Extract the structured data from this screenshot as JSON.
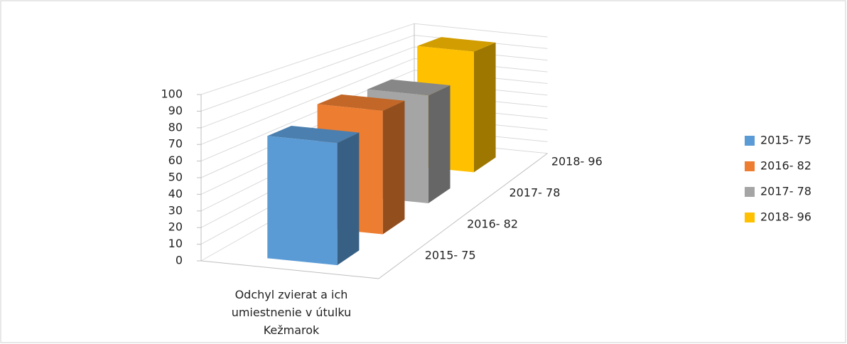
{
  "chart_data": {
    "type": "bar3d",
    "categories": [
      "Odchyl zvierat a ich umiestnenie v útulku Kežmarok"
    ],
    "series": [
      {
        "name": "2015- 75",
        "color": "#5b9bd5",
        "values": [
          75
        ]
      },
      {
        "name": "2016- 82",
        "color": "#ed7d31",
        "values": [
          82
        ]
      },
      {
        "name": "2017- 78",
        "color": "#a5a5a5",
        "values": [
          78
        ]
      },
      {
        "name": "2018- 96",
        "color": "#ffc000",
        "values": [
          96
        ]
      }
    ],
    "ylim": [
      0,
      100
    ],
    "yticks": [
      0,
      10,
      20,
      30,
      40,
      50,
      60,
      70,
      80,
      90,
      100
    ],
    "grid": true,
    "legend": "right"
  }
}
